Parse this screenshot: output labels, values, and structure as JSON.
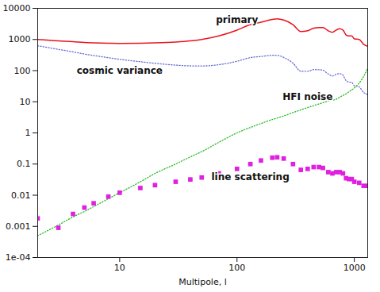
{
  "chart_data": {
    "type": "line",
    "log": true,
    "x_label": "Multipole, l",
    "x": [
      2,
      3,
      4,
      5,
      6,
      8,
      10,
      15,
      20,
      30,
      40,
      50,
      70,
      100,
      130,
      160,
      200,
      220,
      250,
      300,
      350,
      400,
      450,
      500,
      540,
      600,
      650,
      700,
      750,
      800,
      850,
      900,
      950,
      1000,
      1100,
      1200,
      1300
    ],
    "xlim": [
      2,
      1300
    ],
    "xticks": [
      10,
      100,
      1000
    ],
    "ylim": [
      0.0001,
      10000
    ],
    "yticks": [
      {
        "value": 0.0001,
        "label": "1e-04"
      },
      0.001,
      0.01,
      0.1,
      1,
      10,
      100,
      1000,
      10000
    ],
    "series": [
      {
        "name": "primary",
        "type": "line",
        "line_style": "solid",
        "color": "#e8141e",
        "values": [
          1000,
          900,
          850,
          800,
          780,
          760,
          750,
          760,
          780,
          830,
          900,
          1000,
          1300,
          2000,
          3000,
          3600,
          4400,
          4600,
          4200,
          3000,
          1800,
          1900,
          2300,
          2400,
          2400,
          1900,
          1700,
          2000,
          2200,
          2000,
          1400,
          1300,
          1300,
          1050,
          1000,
          700,
          600
        ]
      },
      {
        "name": "cosmic variance",
        "type": "line",
        "line_style": "dotted",
        "color": "#6a6ad8",
        "values": [
          632,
          481,
          400,
          341,
          306,
          261,
          231,
          193,
          172,
          150,
          142,
          141,
          155,
          199,
          262,
          285,
          310,
          308,
          265,
          173,
          96,
          95,
          108,
          107,
          103,
          78,
          67,
          76,
          80,
          71,
          48,
          43,
          42,
          33,
          30,
          20,
          17
        ]
      },
      {
        "name": "HFI noise",
        "type": "line",
        "line_style": "dotted",
        "color": "#22bb22",
        "values": [
          0.0005,
          0.0011,
          0.002,
          0.003,
          0.0043,
          0.0077,
          0.012,
          0.027,
          0.05,
          0.1,
          0.17,
          0.25,
          0.5,
          1.0,
          1.5,
          2.0,
          2.7,
          3.0,
          3.5,
          4.5,
          5.5,
          6.5,
          7.5,
          8.5,
          9.3,
          10.5,
          11.2,
          12,
          14,
          16,
          18,
          21,
          24,
          28,
          40,
          65,
          120
        ]
      },
      {
        "name": "line scattering",
        "type": "scatter",
        "marker": "square",
        "color": "#e020e0",
        "values": [
          0.0018,
          0.0009,
          0.0025,
          0.004,
          0.0055,
          0.009,
          0.012,
          0.017,
          0.021,
          0.027,
          0.032,
          0.037,
          0.05,
          0.07,
          0.1,
          0.13,
          0.16,
          0.165,
          0.15,
          0.1,
          0.065,
          0.07,
          0.08,
          0.08,
          0.075,
          0.055,
          0.05,
          0.055,
          0.055,
          0.05,
          0.035,
          0.033,
          0.033,
          0.027,
          0.025,
          0.02,
          0.02
        ]
      }
    ]
  }
}
